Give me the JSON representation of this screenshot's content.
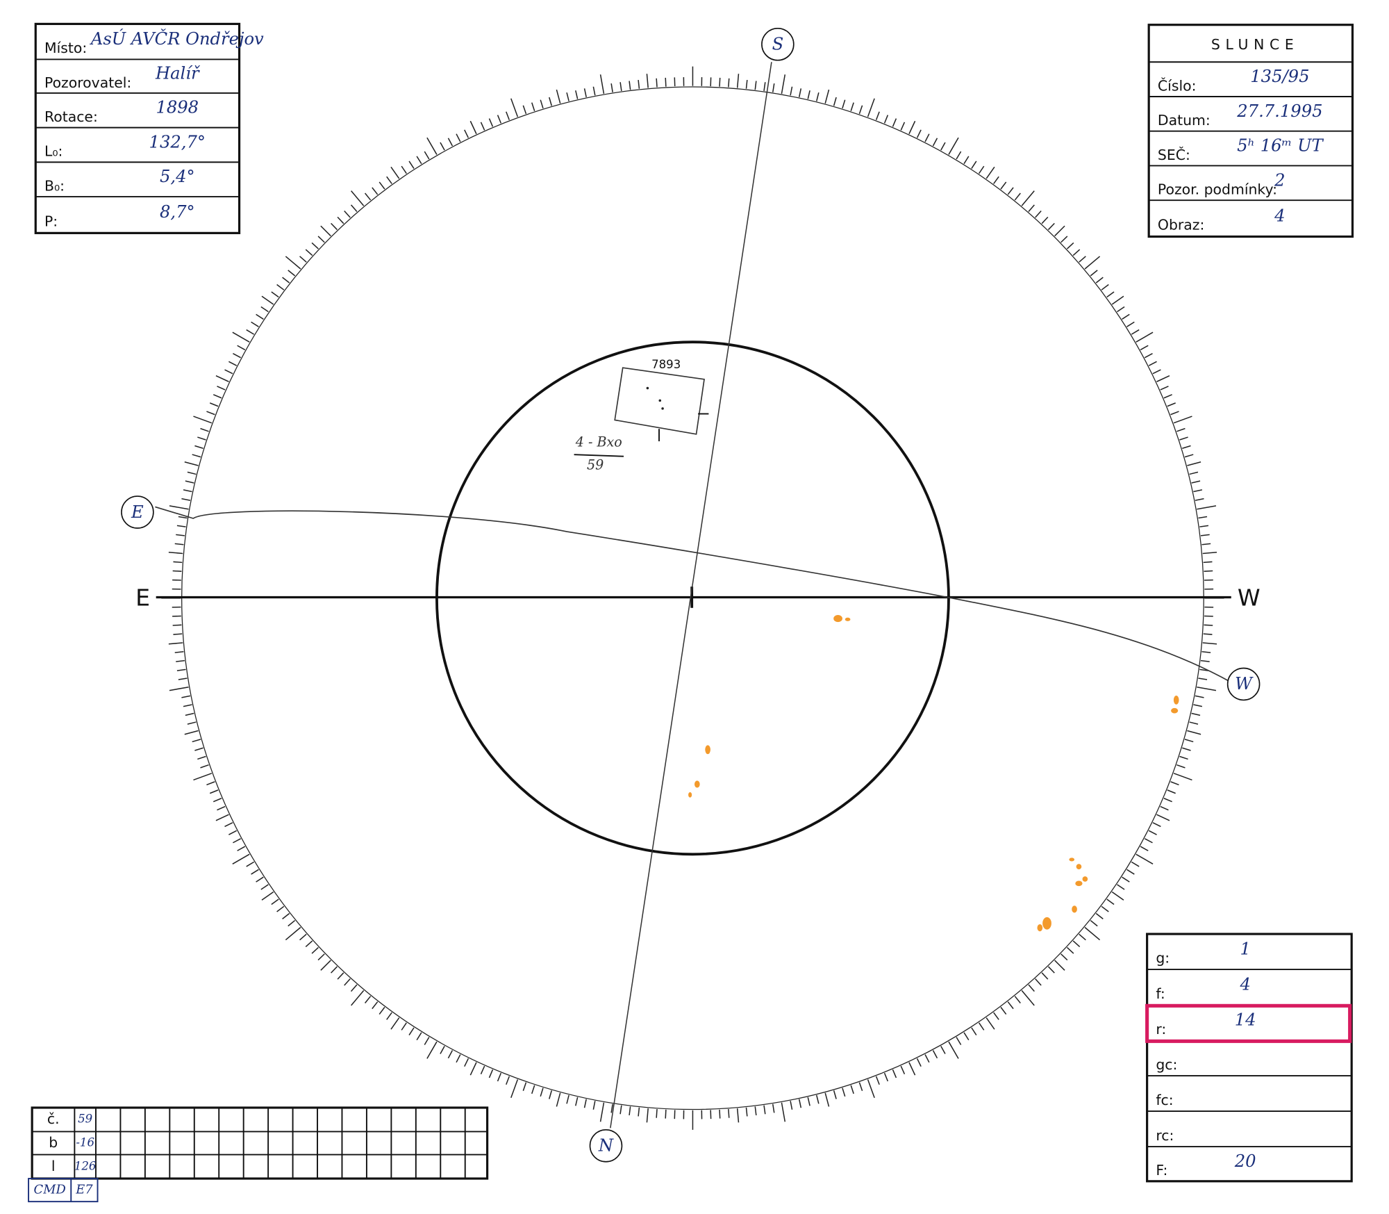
{
  "header": {
    "location_box": {
      "rows": [
        {
          "label": "Místo:",
          "value": "AsÚ AVČR Ondřejov"
        },
        {
          "label": "Pozorovatel:",
          "value": "Halíř"
        },
        {
          "label": "Rotace:",
          "value": "1898"
        },
        {
          "label": "L₀:",
          "value": "132,7°"
        },
        {
          "label": "B₀:",
          "value": "5,4°"
        },
        {
          "label": "P:",
          "value": "8,7°"
        }
      ]
    },
    "sun_box": {
      "title": "SLUNCE",
      "rows": [
        {
          "label": "Číslo:",
          "value": "135/95"
        },
        {
          "label": "Datum:",
          "value": "27.7.1995"
        },
        {
          "label": "SEČ:",
          "value": "5ʰ 16ᵐ UT"
        },
        {
          "label": "Pozor. podmínky:",
          "value": "2"
        },
        {
          "label": "Obraz:",
          "value": "4"
        }
      ]
    }
  },
  "drawing": {
    "compass": {
      "south": "S",
      "north": "N",
      "east": "E",
      "west": "W",
      "east_marker": "E",
      "west_marker": "W"
    },
    "group_number": "7893",
    "group_class": "4 - Bxo",
    "group_index": "59"
  },
  "counts_box": {
    "rows": [
      {
        "label": "g:",
        "value": "1"
      },
      {
        "label": "f:",
        "value": "4"
      },
      {
        "label": "r:",
        "value": "14"
      },
      {
        "label": "gc:"
      },
      {
        "label": "fc:"
      },
      {
        "label": "rc:"
      },
      {
        "label": "F:",
        "value": "20"
      }
    ]
  },
  "group_table": {
    "rows": [
      {
        "label": "č.",
        "value": "59"
      },
      {
        "label": "b",
        "value": "-16"
      },
      {
        "label": "l",
        "value": "126"
      }
    ],
    "cmd_label": "CMD",
    "cmd_value": "E7"
  }
}
